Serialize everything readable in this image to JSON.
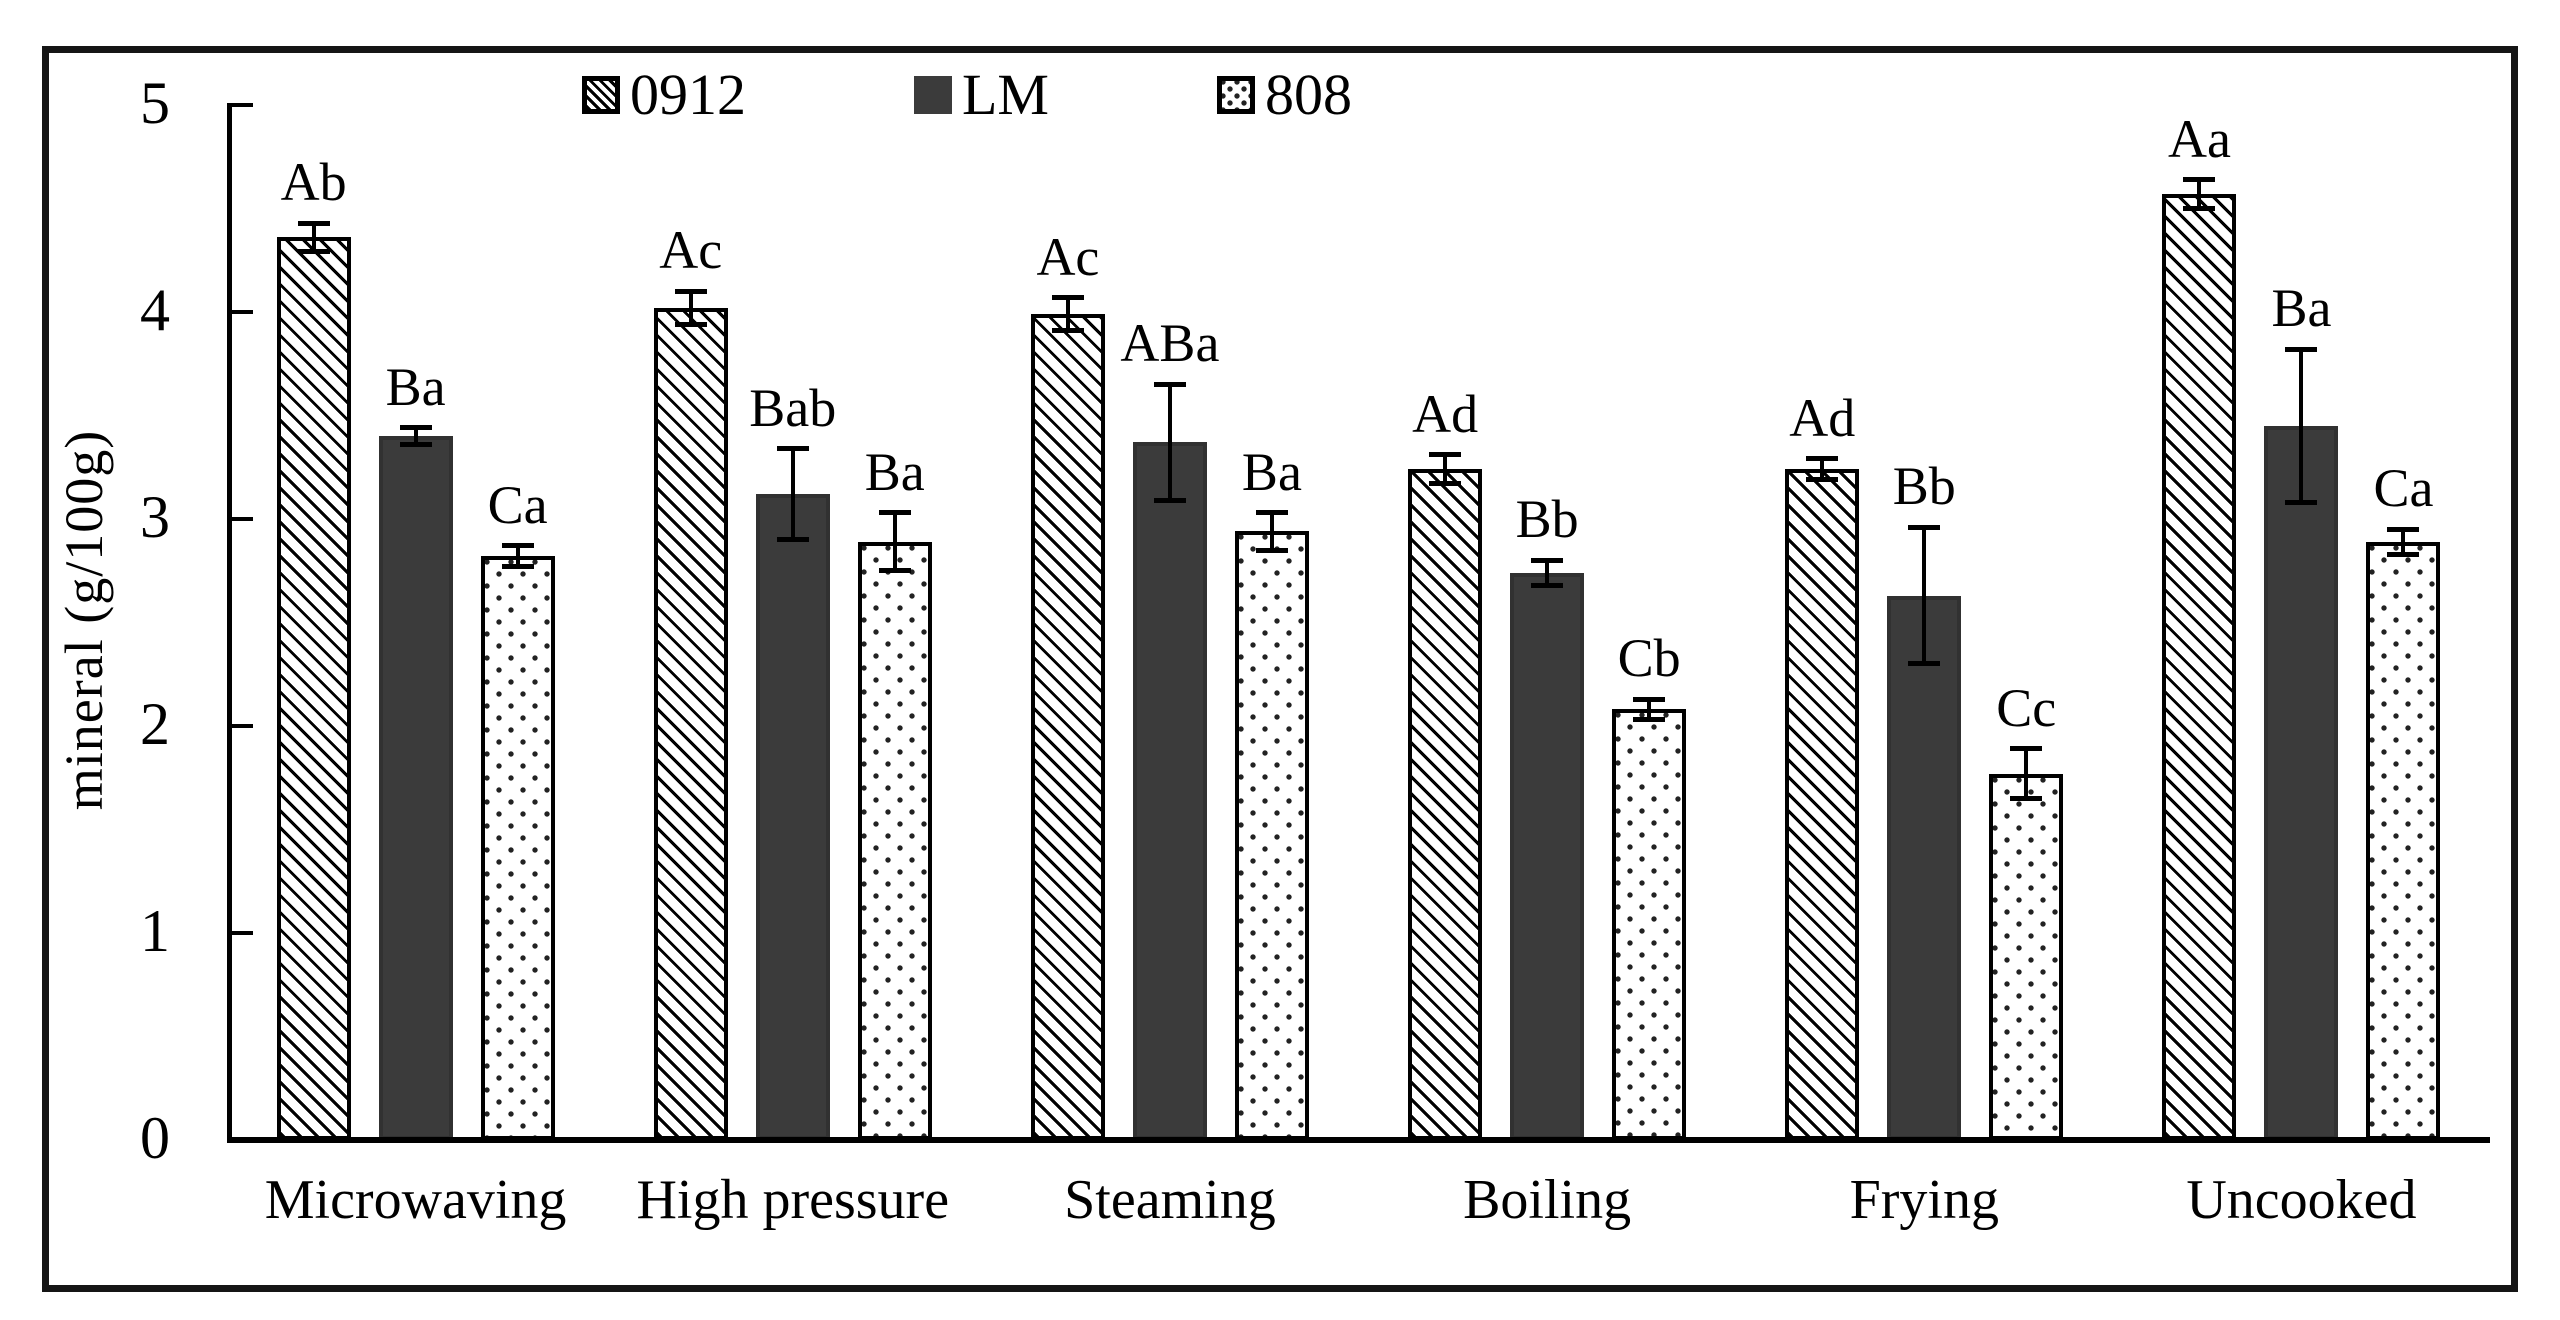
{
  "chart_data": {
    "type": "bar",
    "title": "",
    "xlabel": "",
    "ylabel": "mineral (g/100g)",
    "ylim": [
      0,
      5
    ],
    "yticks": [
      0,
      1,
      2,
      3,
      4,
      5
    ],
    "grid": false,
    "legend_position": "top-center",
    "categories": [
      "Microwaving",
      "High pressure",
      "Steaming",
      "Boiling",
      "Frying",
      "Uncooked"
    ],
    "series": [
      {
        "name": "0912",
        "pattern": "diagonal-hatch",
        "fill": "#ffffff",
        "stroke": "#000000",
        "values": [
          4.36,
          4.02,
          3.99,
          3.24,
          3.24,
          4.57
        ],
        "errors": [
          0.07,
          0.08,
          0.08,
          0.07,
          0.05,
          0.07
        ],
        "sig_letters": [
          "Ab",
          "Ac",
          "Ac",
          "Ad",
          "Ad",
          "Aa"
        ]
      },
      {
        "name": "LM",
        "pattern": "solid",
        "fill": "#3b3b3b",
        "stroke": "#313131",
        "values": [
          3.4,
          3.12,
          3.37,
          2.74,
          2.63,
          3.45
        ],
        "errors": [
          0.04,
          0.22,
          0.28,
          0.06,
          0.33,
          0.37
        ],
        "sig_letters": [
          "Ba",
          "Bab",
          "ABa",
          "Bb",
          "Bb",
          "Ba"
        ]
      },
      {
        "name": "808",
        "pattern": "dotted",
        "fill": "#ffffff",
        "stroke": "#000000",
        "values": [
          2.82,
          2.89,
          2.94,
          2.08,
          1.77,
          2.89
        ],
        "errors": [
          0.05,
          0.14,
          0.09,
          0.05,
          0.12,
          0.06
        ],
        "sig_letters": [
          "Ca",
          "Ba",
          "Ba",
          "Cb",
          "Cc",
          "Ca"
        ]
      }
    ]
  }
}
